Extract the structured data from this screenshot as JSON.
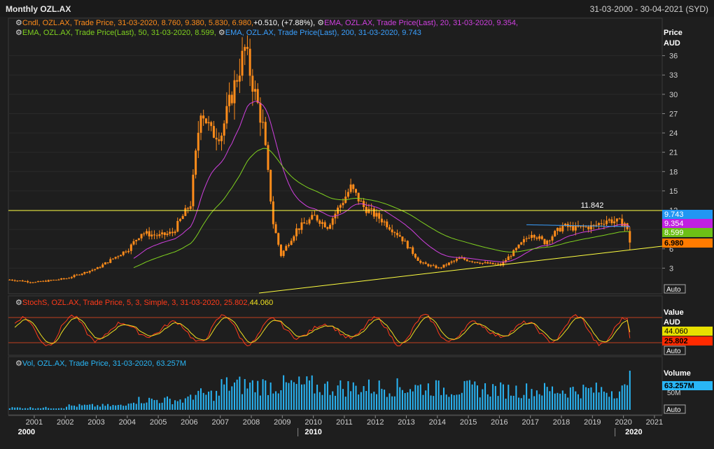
{
  "header": {
    "title": "Monthly OZL.AX",
    "date_range": "31-03-2000 - 30-04-2021 (SYD)"
  },
  "colors": {
    "background": "#1e1e1e",
    "candles": "#ff8c1a",
    "ema20": "#d040e0",
    "ema50": "#7fd11f",
    "ema200": "#3aa0ff",
    "stoch_k": "#ff3a1a",
    "stoch_d": "#f0e020",
    "volume": "#29b6f6",
    "hline": "#ffff40",
    "panel_border": "#c04020"
  },
  "price_panel": {
    "axis_title": [
      "Price",
      "AUD"
    ],
    "ticks": [
      "3",
      "6",
      "9",
      "12",
      "15",
      "18",
      "21",
      "24",
      "27",
      "30",
      "33",
      "36"
    ],
    "legend": [
      {
        "icon": "settings-icon",
        "text": "Cndl, OZL.AX, Trade Price, 31-03-2020, 8.760, 9.380, 5.830, 6.980,",
        "color": "#ff8c1a"
      },
      {
        "icon": "",
        "text": "+0.510, (+7.88%),",
        "color": "#ffffff"
      },
      {
        "icon": "settings-icon",
        "text": "EMA, OZL.AX, Trade Price(Last), 20, 31-03-2020, 9.354,",
        "color": "#d040e0"
      },
      {
        "icon": "settings-icon",
        "text": "EMA, OZL.AX, Trade Price(Last), 50, 31-03-2020, 8.599,",
        "color": "#7fd11f"
      },
      {
        "icon": "settings-icon",
        "text": "EMA, OZL.AX, Trade Price(Last), 200, 31-03-2020, 9.743",
        "color": "#3aa0ff"
      }
    ],
    "hline_label": "11.842",
    "tags": [
      {
        "text": "9.743",
        "bg": "#2196f3",
        "fg": "#ffffff"
      },
      {
        "text": "9.354",
        "bg": "#c020e0",
        "fg": "#ffffff"
      },
      {
        "text": "8.599",
        "bg": "#6cc016",
        "fg": "#ffffff"
      },
      {
        "text": "6.980",
        "bg": "#ff7b00",
        "fg": "#000000"
      }
    ],
    "auto": "Auto"
  },
  "stoch_panel": {
    "legend": [
      {
        "icon": "settings-icon",
        "text": "StochS, OZL.AX, Trade Price, 5, 3, Simple, 3, 31-03-2020, 25.802,",
        "color": "#ff3a1a"
      },
      {
        "icon": "",
        "text": "44.060",
        "color": "#f0e020"
      }
    ],
    "axis_title": [
      "Value",
      "AUD"
    ],
    "tags": [
      {
        "text": "44.060",
        "bg": "#e8e000",
        "fg": "#000000"
      },
      {
        "text": "25.802",
        "bg": "#ff2a00",
        "fg": "#000000"
      }
    ],
    "auto": "Auto"
  },
  "volume_panel": {
    "legend": [
      {
        "icon": "settings-icon",
        "text": "Vol, OZL.AX, Trade Price, 31-03-2020, 63.257M",
        "color": "#29b6f6"
      }
    ],
    "axis_title": "Volume",
    "ticks": [
      "50M"
    ],
    "tags": [
      {
        "text": "63.257M",
        "bg": "#29b6f6",
        "fg": "#000000"
      }
    ],
    "auto": "Auto"
  },
  "x_axis": {
    "years": [
      "2001",
      "2002",
      "2003",
      "2004",
      "2005",
      "2006",
      "2007",
      "2008",
      "2009",
      "2010",
      "2011",
      "2012",
      "2013",
      "2014",
      "2015",
      "2016",
      "2017",
      "2018",
      "2019",
      "2020",
      "2021"
    ],
    "decades": [
      "2000",
      "2010",
      "2020"
    ]
  },
  "chart_data": [
    {
      "type": "candlestick",
      "title": "Monthly OZL.AX",
      "ylabel": "Price AUD",
      "ylim": [
        0,
        39
      ],
      "x_range": [
        "2000-03",
        "2021-04"
      ],
      "hline": 11.842,
      "key_points": [
        {
          "x": "2000-03",
          "y": 1.2
        },
        {
          "x": "2001-01",
          "y": 0.8
        },
        {
          "x": "2002-01",
          "y": 1.4
        },
        {
          "x": "2003-01",
          "y": 3.0
        },
        {
          "x": "2004-01",
          "y": 6.0
        },
        {
          "x": "2004-06",
          "y": 8.5
        },
        {
          "x": "2005-01",
          "y": 8.0
        },
        {
          "x": "2005-06",
          "y": 8.5
        },
        {
          "x": "2006-01",
          "y": 13.0
        },
        {
          "x": "2006-05",
          "y": 28.0
        },
        {
          "x": "2006-09",
          "y": 24.0
        },
        {
          "x": "2007-01",
          "y": 24.0
        },
        {
          "x": "2007-05",
          "y": 30.0
        },
        {
          "x": "2007-10",
          "y": 37.0
        },
        {
          "x": "2008-02",
          "y": 30.0
        },
        {
          "x": "2008-05",
          "y": 25.0
        },
        {
          "x": "2008-09",
          "y": 10.0
        },
        {
          "x": "2008-12",
          "y": 5.0
        },
        {
          "x": "2009-06",
          "y": 9.0
        },
        {
          "x": "2010-01",
          "y": 11.0
        },
        {
          "x": "2010-06",
          "y": 9.5
        },
        {
          "x": "2011-03",
          "y": 15.5
        },
        {
          "x": "2011-08",
          "y": 12.5
        },
        {
          "x": "2012-03",
          "y": 10.5
        },
        {
          "x": "2012-10",
          "y": 8.0
        },
        {
          "x": "2013-06",
          "y": 3.8
        },
        {
          "x": "2014-01",
          "y": 3.0
        },
        {
          "x": "2014-09",
          "y": 4.5
        },
        {
          "x": "2015-06",
          "y": 3.8
        },
        {
          "x": "2016-01",
          "y": 3.5
        },
        {
          "x": "2016-06",
          "y": 5.5
        },
        {
          "x": "2017-01",
          "y": 8.5
        },
        {
          "x": "2017-06",
          "y": 7.0
        },
        {
          "x": "2018-01",
          "y": 9.5
        },
        {
          "x": "2018-06",
          "y": 9.2
        },
        {
          "x": "2019-01",
          "y": 9.5
        },
        {
          "x": "2019-06",
          "y": 10.5
        },
        {
          "x": "2020-01",
          "y": 10.0
        },
        {
          "x": "2020-02",
          "y": 8.8
        },
        {
          "x": "2020-03",
          "y": 6.98
        }
      ],
      "series": [
        {
          "name": "EMA 20",
          "last": 9.354
        },
        {
          "name": "EMA 50",
          "last": 8.599
        },
        {
          "name": "EMA 200",
          "last": 9.743
        }
      ]
    },
    {
      "type": "line",
      "name": "StochS",
      "ylim": [
        0,
        100
      ],
      "bands": [
        20,
        80
      ],
      "last_k": 25.802,
      "last_d": 44.06
    },
    {
      "type": "bar",
      "name": "Vol",
      "last": 63.257
    }
  ]
}
